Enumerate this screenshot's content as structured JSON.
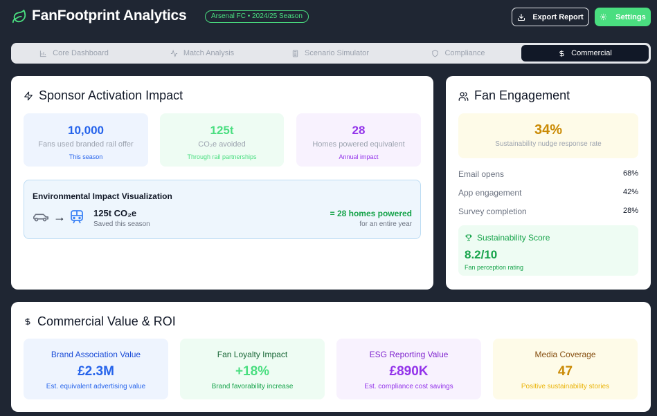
{
  "header": {
    "app_title": "FanFootprint Analytics",
    "season_badge": "Arsenal FC • 2024/25 Season",
    "export_label": "Export Report",
    "settings_label": "Settings"
  },
  "tabs": [
    {
      "label": "Core Dashboard",
      "icon": "bar-chart-icon",
      "active": false
    },
    {
      "label": "Match Analysis",
      "icon": "activity-icon",
      "active": false
    },
    {
      "label": "Scenario Simulator",
      "icon": "calculator-icon",
      "active": false
    },
    {
      "label": "Compliance",
      "icon": "shield-icon",
      "active": false
    },
    {
      "label": "Commercial",
      "icon": "dollar-icon",
      "active": true
    }
  ],
  "sponsor": {
    "title": "Sponsor Activation Impact",
    "stats": [
      {
        "value": "10,000",
        "label": "Fans used branded rail offer",
        "sub": "This season"
      },
      {
        "value": "125t",
        "label": "CO₂e avoided",
        "sub": "Through rail partnerships"
      },
      {
        "value": "28",
        "label": "Homes powered equivalent",
        "sub": "Annual impact"
      }
    ],
    "env": {
      "title": "Environmental Impact Visualization",
      "value": "125t CO₂e",
      "sub": "Saved this season",
      "homes": "= 28 homes powered",
      "period": "for an entire year"
    }
  },
  "engagement": {
    "title": "Fan Engagement",
    "nudge_value": "34%",
    "nudge_label": "Sustainability nudge response rate",
    "metrics": [
      {
        "label": "Email opens",
        "value": "68%"
      },
      {
        "label": "App engagement",
        "value": "42%"
      },
      {
        "label": "Survey completion",
        "value": "28%"
      }
    ],
    "score_title": "Sustainability Score",
    "score_value": "8.2/10",
    "score_sub": "Fan perception rating"
  },
  "commercial": {
    "title": "Commercial Value & ROI",
    "cards": [
      {
        "title": "Brand Association Value",
        "value": "£2.3M",
        "sub": "Est. equivalent advertising value"
      },
      {
        "title": "Fan Loyalty Impact",
        "value": "+18%",
        "sub": "Brand favorability increase"
      },
      {
        "title": "ESG Reporting Value",
        "value": "£890K",
        "sub": "Est. compliance cost savings"
      },
      {
        "title": "Media Coverage",
        "value": "47",
        "sub": "Positive sustainability stories"
      }
    ]
  },
  "colors": {
    "brand_green": "#4ade80",
    "blue": "#2563eb",
    "green": "#16a34a",
    "purple": "#9333ea",
    "amber": "#ca8a04",
    "background": "#1f2633"
  }
}
